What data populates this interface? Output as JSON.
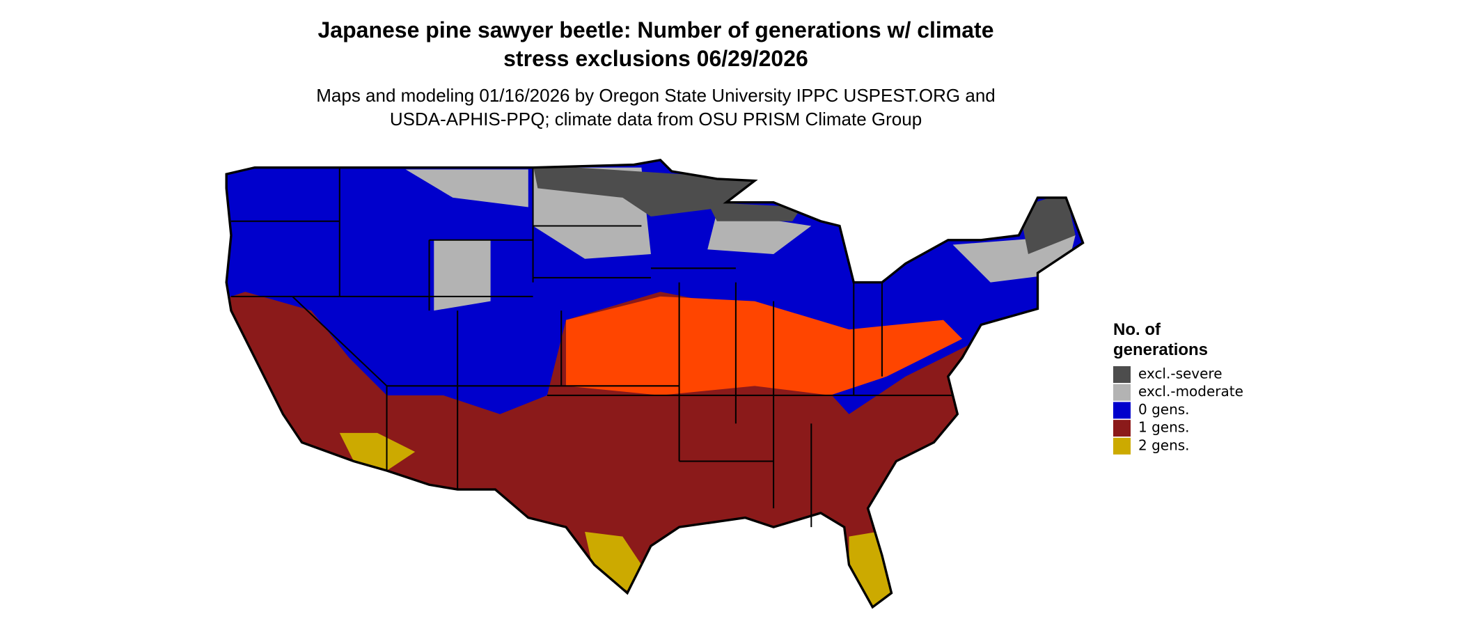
{
  "title": [
    "Japanese pine sawyer beetle: Number of generations w/ climate",
    "stress exclusions 06/29/2026"
  ],
  "subtitle": [
    "Maps and modeling 01/16/2026 by Oregon State University IPPC USPEST.ORG and",
    "USDA-APHIS-PPQ; climate data from OSU PRISM Climate Group"
  ],
  "legend": {
    "title": [
      "No. of",
      "generations"
    ],
    "items": [
      {
        "label": "excl.-severe",
        "color": "#4d4d4d"
      },
      {
        "label": "excl.-moderate",
        "color": "#b3b3b3"
      },
      {
        "label": "0 gens.",
        "color": "#0000cc"
      },
      {
        "label": "1 gens.",
        "color": "#8b1a1a"
      },
      {
        "label": "2 gens.",
        "color": "#ccaa00"
      }
    ]
  }
}
